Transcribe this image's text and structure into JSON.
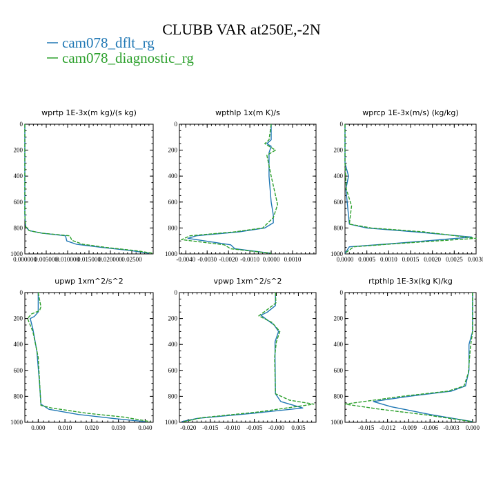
{
  "page": {
    "title": "CLUBB VAR at250E,-2N",
    "legend": [
      {
        "label": "cam078_dflt_rg",
        "color": "#1f77b4",
        "dash": "solid"
      },
      {
        "label": "cam078_diagnostic_rg",
        "color": "#2ca02c",
        "dash": "dashed"
      }
    ]
  },
  "chart_data": [
    {
      "type": "line",
      "title": "wprtp  1E-3x(m kg)/(s kg)",
      "xlim": [
        0,
        0.03
      ],
      "ylim": [
        1000,
        0
      ],
      "xticks": [
        0,
        0.005,
        0.01,
        0.015,
        0.02,
        0.025
      ],
      "xticklabels": [
        "0.000000",
        "0.005000",
        "0.010000",
        "0.015000",
        "0.020000",
        "0.02500"
      ],
      "yticks": [
        0,
        200,
        400,
        600,
        800,
        1000
      ],
      "yticklabels": [
        "0",
        "200",
        "400",
        "600",
        "800",
        "1000"
      ],
      "series": [
        {
          "name": "cam078_dflt_rg",
          "x": [
            0,
            0,
            0,
            0.0002,
            0.001,
            0.004,
            0.0095,
            0.0098,
            0.012,
            0.018,
            0.025,
            0.029
          ],
          "y": [
            0,
            300,
            700,
            790,
            820,
            840,
            860,
            900,
            925,
            950,
            975,
            995
          ]
        },
        {
          "name": "cam078_diagnostic_rg",
          "x": [
            0,
            0,
            0,
            0.0002,
            0.001,
            0.004,
            0.0105,
            0.011,
            0.0135,
            0.019,
            0.026,
            0.03
          ],
          "y": [
            0,
            300,
            700,
            790,
            820,
            840,
            860,
            895,
            925,
            950,
            975,
            995
          ]
        }
      ]
    },
    {
      "type": "line",
      "title": "wpthlp  1x(m K)/s",
      "xlim": [
        -0.0043,
        0.0021
      ],
      "ylim": [
        1000,
        0
      ],
      "xticks": [
        -0.004,
        -0.003,
        -0.002,
        -0.001,
        0.0,
        0.001
      ],
      "xticklabels": [
        "-0.0040",
        "-0.0030",
        "-0.0020",
        "-0.0010",
        "0.0000",
        "0.0010"
      ],
      "yticks": [
        0,
        200,
        400,
        600,
        800,
        1000
      ],
      "yticklabels": [
        "0",
        "200",
        "400",
        "600",
        "800",
        "1000"
      ],
      "series": [
        {
          "name": "cam078_dflt_rg",
          "x": [
            0,
            0,
            -0.0002,
            0,
            -0.0001,
            -0.0001,
            0,
            0.0001,
            0.0001,
            -0.0003,
            -0.0015,
            -0.0035,
            -0.0039,
            -0.0019,
            -0.0017,
            0
          ],
          "y": [
            0,
            120,
            150,
            170,
            220,
            400,
            600,
            700,
            760,
            800,
            830,
            860,
            880,
            930,
            960,
            995
          ]
        },
        {
          "name": "cam078_diagnostic_rg",
          "x": [
            0,
            -0.0001,
            -0.0003,
            0.0002,
            -0.0002,
            0,
            0.0003,
            0.0001,
            -0.0004,
            -0.0017,
            -0.0038,
            -0.0042,
            -0.0022,
            -0.0019,
            0
          ],
          "y": [
            0,
            120,
            150,
            200,
            240,
            400,
            620,
            720,
            800,
            830,
            860,
            890,
            930,
            960,
            995
          ]
        }
      ]
    },
    {
      "type": "line",
      "title": "wprcp  1E-3x(m/s) (kg/kg)",
      "xlim": [
        0,
        0.003
      ],
      "ylim": [
        1000,
        0
      ],
      "xticks": [
        0,
        0.0005,
        0.001,
        0.0015,
        0.002,
        0.0025,
        0.003
      ],
      "xticklabels": [
        "0.0000",
        "0.0005",
        "0.0010",
        "0.0015",
        "0.0020",
        "0.0025",
        "0.0030"
      ],
      "yticks": [
        0,
        200,
        400,
        600,
        800,
        1000
      ],
      "yticklabels": [
        "0",
        "200",
        "400",
        "600",
        "800",
        "1000"
      ],
      "series": [
        {
          "name": "cam078_dflt_rg",
          "x": [
            0,
            0,
            8e-05,
            2e-05,
            0.0001,
            0.0005,
            0.0016,
            0.0029,
            0.0011,
            0.0001,
            0
          ],
          "y": [
            0,
            300,
            400,
            500,
            770,
            800,
            830,
            870,
            920,
            945,
            995
          ]
        },
        {
          "name": "cam078_diagnostic_rg",
          "x": [
            0,
            0,
            3e-05,
            0.00015,
            0.0001,
            0.0006,
            0.0018,
            0.003,
            0.0012,
            0.0002,
            0
          ],
          "y": [
            0,
            300,
            500,
            630,
            770,
            800,
            830,
            880,
            920,
            945,
            995
          ]
        }
      ]
    },
    {
      "type": "line",
      "title": "upwp  1xm^2/s^2",
      "xlim": [
        -0.005,
        0.043
      ],
      "ylim": [
        1000,
        0
      ],
      "xticks": [
        0,
        0.01,
        0.02,
        0.03,
        0.04
      ],
      "xticklabels": [
        "0.000",
        "0.010",
        "0.020",
        "0.030",
        "0.040"
      ],
      "yticks": [
        0,
        200,
        400,
        600,
        800,
        1000
      ],
      "yticklabels": [
        "0",
        "200",
        "400",
        "600",
        "800",
        "1000"
      ],
      "series": [
        {
          "name": "cam078_dflt_rg",
          "x": [
            0,
            0,
            -0.0015,
            -0.003,
            -0.002,
            -0.0005,
            0.0005,
            0.001,
            0.004,
            0.015,
            0.028,
            0.04
          ],
          "y": [
            0,
            150,
            185,
            200,
            280,
            450,
            700,
            860,
            900,
            940,
            970,
            995
          ]
        },
        {
          "name": "cam078_diagnostic_rg",
          "x": [
            0,
            0.001,
            0.0005,
            -0.0025,
            -0.004,
            -0.002,
            0,
            0.001,
            0.005,
            0.018,
            0.032,
            0.042
          ],
          "y": [
            0,
            110,
            140,
            165,
            200,
            300,
            500,
            870,
            890,
            930,
            960,
            995
          ]
        }
      ]
    },
    {
      "type": "line",
      "title": "vpwp  1xm^2/s^2",
      "xlim": [
        -0.022,
        0.009
      ],
      "ylim": [
        1000,
        0
      ],
      "xticks": [
        -0.02,
        -0.015,
        -0.01,
        -0.005,
        0.0,
        0.005
      ],
      "xticklabels": [
        "-0.020",
        "-0.015",
        "-0.010",
        "-0.005",
        "-0.000",
        "0.005"
      ],
      "yticks": [
        0,
        200,
        400,
        600,
        800,
        1000
      ],
      "yticklabels": [
        "0",
        "200",
        "400",
        "600",
        "800",
        "1000"
      ],
      "series": [
        {
          "name": "cam078_dflt_rg",
          "x": [
            -0.0002,
            -0.0002,
            -0.002,
            -0.0035,
            -0.0005,
            0.0005,
            -0.0003,
            -0.0003,
            -0.0002,
            0.001,
            0.006,
            -0.005,
            -0.018,
            -0.0215
          ],
          "y": [
            0,
            100,
            150,
            175,
            250,
            300,
            380,
            500,
            780,
            840,
            890,
            930,
            970,
            995
          ]
        },
        {
          "name": "cam078_diagnostic_rg",
          "x": [
            -0.0002,
            -0.0001,
            -0.002,
            -0.004,
            -0.001,
            0.0008,
            0,
            -0.0004,
            -0.0002,
            0.003,
            0.0085,
            -0.004,
            -0.017,
            -0.021
          ],
          "y": [
            0,
            80,
            130,
            180,
            230,
            300,
            380,
            500,
            780,
            830,
            860,
            920,
            965,
            995
          ]
        }
      ]
    },
    {
      "type": "line",
      "title": "rtpthlp  1E-3x(kg K)/kg",
      "xlim": [
        -0.018,
        0.0005
      ],
      "ylim": [
        1000,
        0
      ],
      "xticks": [
        -0.015,
        -0.012,
        -0.009,
        -0.006,
        -0.003,
        0.0
      ],
      "xticklabels": [
        "-0.015",
        "-0.012",
        "-0.009",
        "-0.006",
        "-0.003",
        "0.000"
      ],
      "yticks": [
        0,
        200,
        400,
        600,
        800,
        1000
      ],
      "yticklabels": [
        "0",
        "200",
        "400",
        "600",
        "800",
        "1000"
      ],
      "series": [
        {
          "name": "cam078_dflt_rg",
          "x": [
            0,
            0,
            -0.0005,
            -0.0005,
            -0.001,
            -0.003,
            -0.009,
            -0.014,
            -0.0115,
            -0.006,
            0
          ],
          "y": [
            0,
            300,
            400,
            600,
            720,
            760,
            800,
            840,
            880,
            940,
            995
          ]
        },
        {
          "name": "cam078_diagnostic_rg",
          "x": [
            0,
            0,
            -0.0003,
            -0.0006,
            -0.0012,
            -0.0035,
            -0.01,
            -0.018,
            -0.013,
            -0.007,
            0
          ],
          "y": [
            0,
            300,
            420,
            620,
            720,
            760,
            800,
            860,
            900,
            940,
            995
          ]
        }
      ]
    }
  ]
}
